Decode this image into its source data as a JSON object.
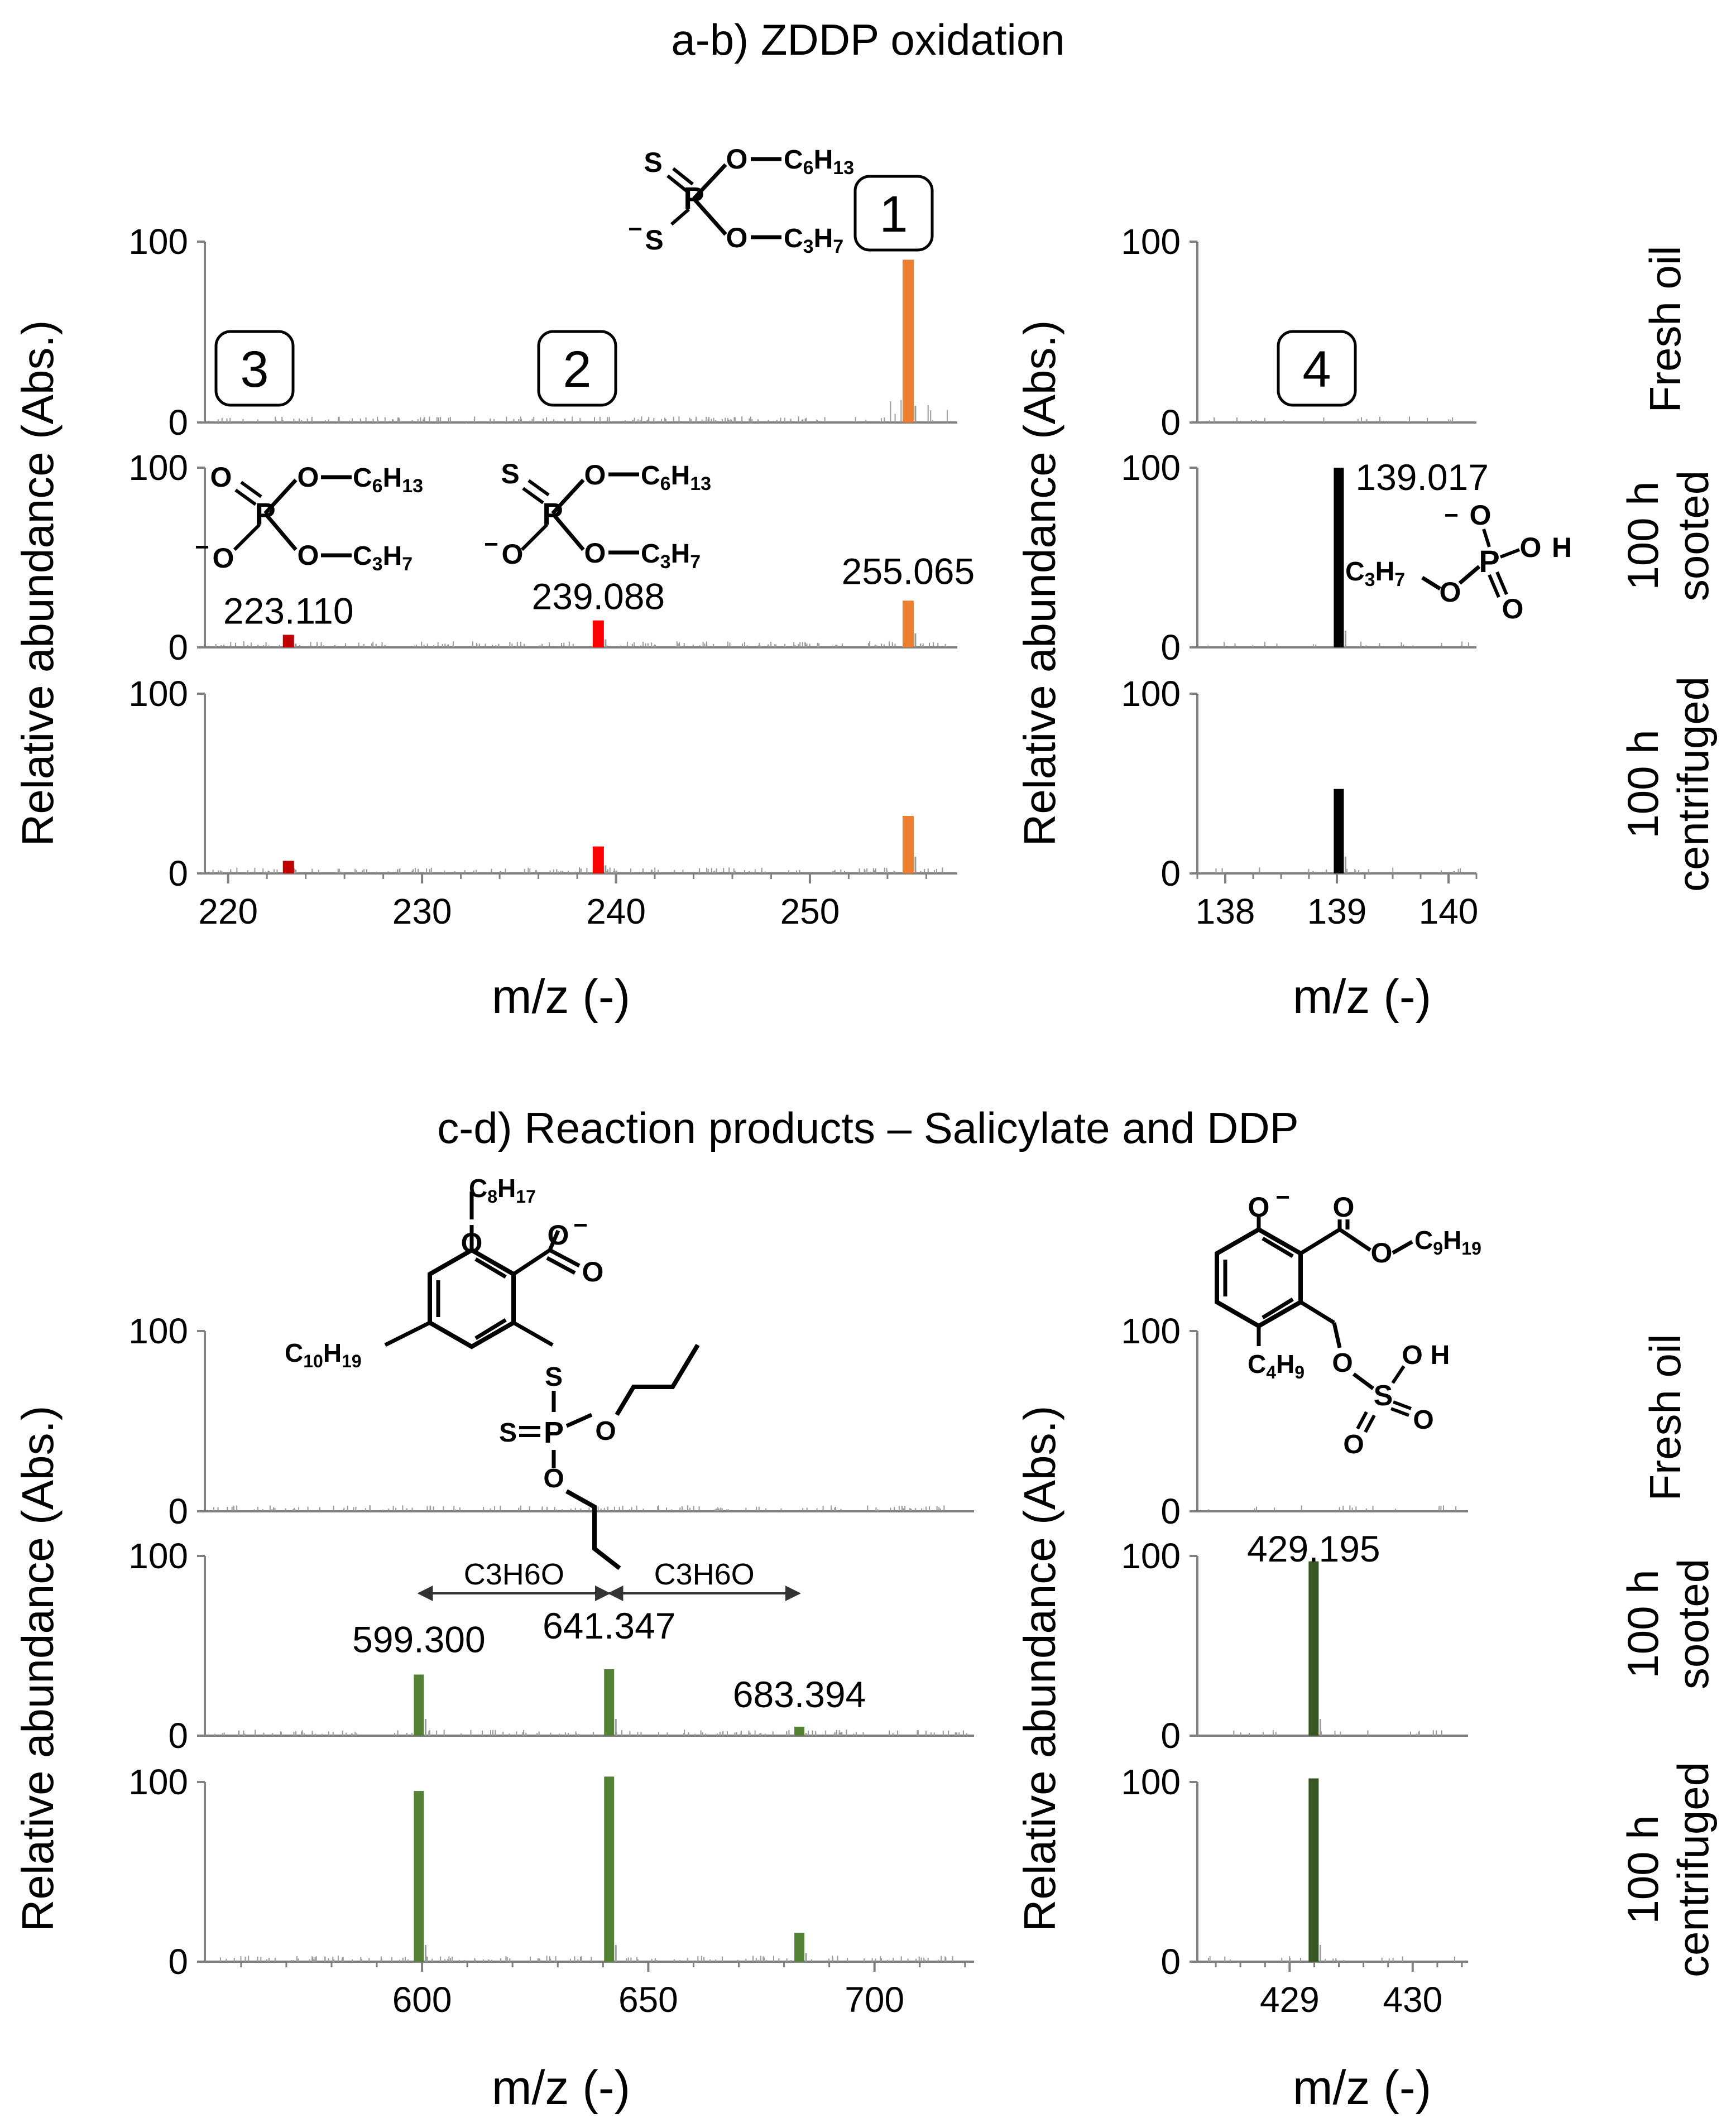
{
  "sections": [
    {
      "title": "a-b) ZDDP oxidation"
    },
    {
      "title": "c-d) Reaction products – Salicylate and DDP"
    }
  ],
  "y_axis_label": "Relative abundance (Abs.)",
  "x_axis_label": "m/z (-)",
  "row_labels": [
    {
      "line1": "Fresh oil",
      "line2": ""
    },
    {
      "line1": "100 h",
      "line2": "sooted"
    },
    {
      "line1": "100 h",
      "line2": "centrifuged"
    }
  ],
  "compound_numbers": [
    "1",
    "2",
    "3",
    "4"
  ],
  "colors": {
    "orange": "#ed7d31",
    "red": "#ff0000",
    "darkred": "#c00000",
    "black": "#000000",
    "green": "#548235",
    "darkgreen": "#375623",
    "noise": "#808080",
    "gold": "#f2a900",
    "oxygen": "#e00000"
  },
  "chem_labels": {
    "c6h13": "C6H13",
    "c3h7": "C3H7",
    "c8h17": "C8H17",
    "c10h19": "C10H19",
    "c9h19": "C9H19",
    "c4h9": "C4H9",
    "c3h6o": "C3H6O"
  },
  "chart_data": [
    {
      "id": "a",
      "type": "bar",
      "xlabel": "m/z (-)",
      "ylabel": "Relative abundance (Abs.)",
      "xlim": [
        218.8,
        257.6
      ],
      "ylim": [
        0,
        100
      ],
      "xticks": [
        220,
        230,
        240,
        250
      ],
      "yticks": [
        0,
        100
      ],
      "rows": [
        "Fresh oil",
        "100 h sooted",
        "100 h centrifuged"
      ],
      "series": [
        {
          "compound": "3",
          "mz": 223.11,
          "label": "223.110",
          "color": "#c00000",
          "values": [
            0,
            7,
            7
          ]
        },
        {
          "compound": "2",
          "mz": 239.088,
          "label": "239.088",
          "color": "#ff0000",
          "values": [
            0,
            15,
            15
          ]
        },
        {
          "compound": "1",
          "mz": 255.065,
          "label": "255.065",
          "color": "#ed7d31",
          "values": [
            90,
            26,
            32
          ]
        }
      ]
    },
    {
      "id": "b",
      "type": "bar",
      "xlabel": "m/z (-)",
      "ylabel": "Relative abundance (Abs.)",
      "xlim": [
        137.75,
        140.25
      ],
      "ylim": [
        0,
        100
      ],
      "xticks": [
        138,
        139,
        140
      ],
      "yticks": [
        0,
        100
      ],
      "rows": [
        "Fresh oil",
        "100 h sooted",
        "100 h centrifuged"
      ],
      "series": [
        {
          "compound": "4",
          "mz": 139.017,
          "label": "139.017",
          "color": "#000000",
          "values": [
            0,
            100,
            47
          ]
        }
      ]
    },
    {
      "id": "c",
      "type": "bar",
      "xlabel": "m/z (-)",
      "ylabel": "Relative abundance (Abs.)",
      "xlim": [
        552,
        722
      ],
      "ylim": [
        0,
        100
      ],
      "xticks": [
        600,
        650,
        700
      ],
      "yticks": [
        0,
        100
      ],
      "rows": [
        "Fresh oil",
        "100 h sooted",
        "100 h centrifuged"
      ],
      "series": [
        {
          "mz": 599.3,
          "label": "599.300",
          "color": "#548235",
          "values": [
            0,
            34,
            95
          ]
        },
        {
          "mz": 641.347,
          "label": "641.347",
          "color": "#548235",
          "values": [
            0,
            37,
            103
          ]
        },
        {
          "mz": 683.394,
          "label": "683.394",
          "color": "#548235",
          "values": [
            0,
            5,
            16
          ]
        }
      ],
      "annotations": [
        {
          "text": "C3H6O",
          "from": 599.3,
          "to": 641.347
        },
        {
          "text": "C3H6O",
          "from": 641.347,
          "to": 683.394
        }
      ]
    },
    {
      "id": "d",
      "type": "bar",
      "xlabel": "m/z (-)",
      "ylabel": "Relative abundance (Abs.)",
      "xlim": [
        428.25,
        430.45
      ],
      "ylim": [
        0,
        100
      ],
      "xticks": [
        429,
        430
      ],
      "yticks": [
        0,
        100
      ],
      "rows": [
        "Fresh oil",
        "100 h sooted",
        "100 h centrifuged"
      ],
      "series": [
        {
          "mz": 429.195,
          "label": "429.195",
          "color": "#375623",
          "values": [
            0,
            97,
            102
          ]
        }
      ]
    }
  ]
}
